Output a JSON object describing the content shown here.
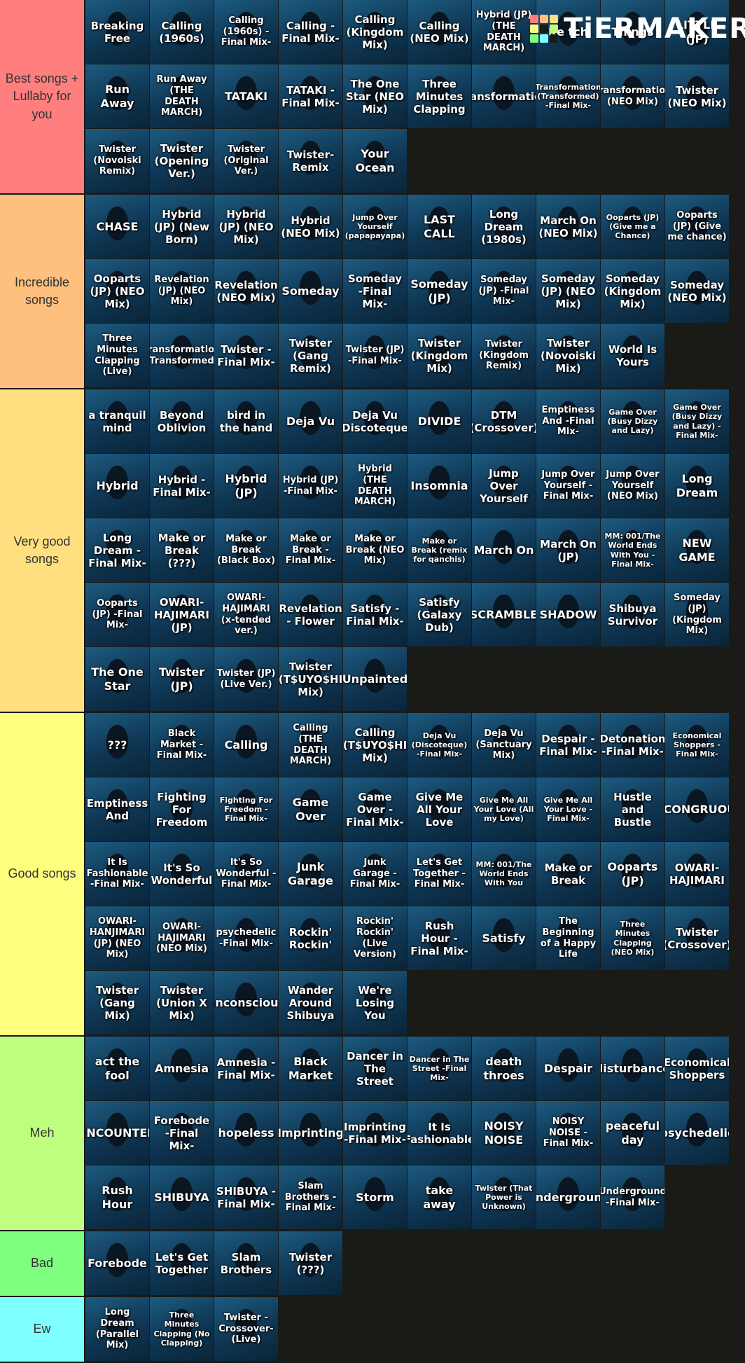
{
  "watermark": "TiERMAKER",
  "tiers": [
    {
      "label": "Best songs + Lullaby for you",
      "color": "#ff7f7f",
      "items": [
        "Breaking Free",
        "Calling (1960s)",
        "Calling (1960s) -Final Mix-",
        "Calling -Final Mix-",
        "Calling (Kingdom Mix)",
        "Calling (NEO Mix)",
        "Hybrid (JP) (THE DEATH MARCH)",
        "Ke tch",
        "Things",
        "LITTLE (JP)",
        "Run Away",
        "Run Away (THE DEATH MARCH)",
        "TATAKI",
        "TATAKI -Final Mix-",
        "The One Star (NEO Mix)",
        "Three Minutes Clapping",
        "Transformation",
        "Transformation (Transformed) -Final Mix-",
        "Transformation (NEO Mix)",
        "Twister (NEO Mix)",
        "Twister (Novoiski Remix)",
        "Twister (Opening Ver.)",
        "Twister (Original Ver.)",
        "Twister-Remix",
        "Your Ocean"
      ]
    },
    {
      "label": "Incredible songs",
      "color": "#ffbf7f",
      "items": [
        "CHASE",
        "Hybrid (JP) (New Born)",
        "Hybrid (JP) (NEO Mix)",
        "Hybrid (NEO Mix)",
        "Jump Over Yourself (papapayapa)",
        "LAST CALL",
        "Long Dream (1980s)",
        "March On (NEO Mix)",
        "Ooparts (JP) (Give me a Chance)",
        "Ooparts (JP) (Give me chance)",
        "Ooparts (JP) (NEO Mix)",
        "Revelation (JP) (NEO Mix)",
        "Revelation (NEO Mix)",
        "Someday",
        "Someday -Final Mix-",
        "Someday (JP)",
        "Someday (JP) -Final Mix-",
        "Someday (JP) (NEO Mix)",
        "Someday (Kingdom Mix)",
        "Someday (NEO Mix)",
        "Three Minutes Clapping (Live)",
        "Transformation (Transformed)",
        "Twister -Final Mix-",
        "Twister (Gang Remix)",
        "Twister (JP) -Final Mix-",
        "Twister (Kingdom Mix)",
        "Twister (Kingdom Remix)",
        "Twister (Novoiski Mix)",
        "World Is Yours"
      ]
    },
    {
      "label": "Very good songs",
      "color": "#ffdf7f",
      "items": [
        "a tranquil mind",
        "Beyond Oblivion",
        "bird in the hand",
        "Deja Vu",
        "Deja Vu (Discoteque)",
        "DIVIDE",
        "DTM (Crossover)",
        "Emptiness And -Final Mix-",
        "Game Over (Busy Dizzy and Lazy)",
        "Game Over (Busy Dizzy and Lazy) -Final Mix-",
        "Hybrid",
        "Hybrid -Final Mix-",
        "Hybrid (JP)",
        "Hybrid (JP) -Final Mix-",
        "Hybrid (THE DEATH MARCH)",
        "Insomnia",
        "Jump Over Yourself",
        "Jump Over Yourself -Final Mix-",
        "Jump Over Yourself (NEO Mix)",
        "Long Dream",
        "Long Dream -Final Mix-",
        "Make or Break (???)",
        "Make or Break (Black Box)",
        "Make or Break -Final Mix-",
        "Make or Break (NEO Mix)",
        "Make or Break (remix for qanchis)",
        "March On",
        "March On (JP)",
        "MM: 001/The World Ends With You -Final Mix-",
        "NEW GAME",
        "Ooparts (JP) -Final Mix-",
        "OWARI-HAJIMARI (JP)",
        "OWARI-HAJIMARI (x-tended ver.)",
        "Revelation - Flower",
        "Satisfy -Final Mix-",
        "Satisfy (Galaxy Dub)",
        "SCRAMBLE",
        "SHADOW",
        "Shibuya Survivor",
        "Someday (JP) (Kingdom Mix)",
        "The One Star",
        "Twister (JP)",
        "Twister (JP) (Live Ver.)",
        "Twister (T$UYO$HI Mix)",
        "Unpainted"
      ]
    },
    {
      "label": "Good songs",
      "color": "#ffff7f",
      "items": [
        "???",
        "Black Market -Final Mix-",
        "Calling",
        "Calling (THE DEATH MARCH)",
        "Calling (T$UYO$HI Mix)",
        "Deja Vu (Discoteque) -Final Mix-",
        "Deja Vu (Sanctuary Mix)",
        "Despair -Final Mix-",
        "Detonation -Final Mix-",
        "Economical Shoppers -Final Mix-",
        "Emptiness And",
        "Fighting For Freedom",
        "Fighting For Freedom -Final Mix-",
        "Game Over",
        "Game Over -Final Mix-",
        "Give Me All Your Love",
        "Give Me All Your Love (All my Love)",
        "Give Me All Your Love -Final Mix-",
        "Hustle and Bustle",
        "INCONGRUOUS",
        "It Is Fashionable -Final Mix-",
        "It's So Wonderful",
        "It's So Wonderful -Final Mix-",
        "Junk Garage",
        "Junk Garage -Final Mix-",
        "Let's Get Together -Final Mix-",
        "MM: 001/The World Ends With You",
        "Make or Break",
        "Ooparts (JP)",
        "OWARI-HAJIMARI",
        "OWARI-HANJIMARI (JP) (NEO Mix)",
        "OWARI-HAJIMARI (NEO Mix)",
        "psychedelic -Final Mix-",
        "Rockin' Rockin'",
        "Rockin' Rockin' (Live Version)",
        "Rush Hour -Final Mix-",
        "Satisfy",
        "The Beginning of a Happy Life",
        "Three Minutes Clapping (NEO Mix)",
        "Twister (Crossover)",
        "Twister (Gang Mix)",
        "Twister (Union X Mix)",
        "unconscious",
        "Wander Around Shibuya",
        "We're Losing You"
      ]
    },
    {
      "label": "Meh",
      "color": "#bfff7f",
      "items": [
        "act the fool",
        "Amnesia",
        "Amnesia -Final Mix-",
        "Black Market",
        "Dancer in The Street",
        "Dancer in The Street -Final Mix-",
        "death throes",
        "Despair",
        "disturbance",
        "Economical Shoppers",
        "ENCOUNTER",
        "Forebode -Final Mix-",
        "hopeless",
        "Imprinting",
        "Imprinting -Final Mix-",
        "It Is Fashionable",
        "NOISY NOISE",
        "NOISY NOISE -Final Mix-",
        "peaceful day",
        "psychedelic",
        "Rush Hour",
        "SHIBUYA",
        "SHIBUYA -Final Mix-",
        "Slam Brothers -Final Mix-",
        "Storm",
        "take away",
        "Twister (That Power is Unknown)",
        "Underground",
        "Underground -Final Mix-"
      ]
    },
    {
      "label": "Bad",
      "color": "#7fff7f",
      "items": [
        "Forebode",
        "Let's Get Together",
        "Slam Brothers",
        "Twister (???)"
      ]
    },
    {
      "label": "Ew",
      "color": "#7fffff",
      "items": [
        "Long Dream (Parallel Mix)",
        "Three Minutes Clapping (No Clapping)",
        "Twister -Crossover- (Live)"
      ]
    }
  ]
}
